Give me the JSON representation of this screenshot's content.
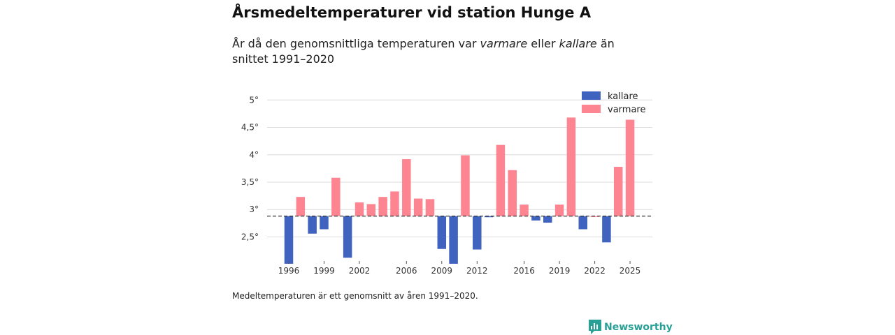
{
  "header": {
    "title": "Årsmedeltemperaturer vid station Hunge A",
    "subtitle_parts": [
      "År då den genomsnittliga temperaturen var ",
      "varmare",
      " eller ",
      "kallare",
      " än snittet 1991–2020"
    ]
  },
  "footnote": "Medeltemperaturen är ett genomsnitt av åren 1991–2020.",
  "brand": {
    "name": "Newsworthy",
    "icon": "newsworthy-logo-icon"
  },
  "chart_data": {
    "type": "bar",
    "title": "Årsmedeltemperaturer vid station Hunge A",
    "baseline": 2.88,
    "ylim": [
      2.0,
      5.2
    ],
    "yticks": [
      2.5,
      3,
      3.5,
      4,
      4.5,
      5
    ],
    "ytick_labels": [
      "2,5°",
      "3°",
      "3,5°",
      "4°",
      "4,5°",
      "5°"
    ],
    "xtick_years": [
      1996,
      1999,
      2002,
      2006,
      2009,
      2012,
      2016,
      2019,
      2022,
      2025
    ],
    "legend": [
      {
        "key": "kallare",
        "label": "kallare",
        "color": "#3f63bf"
      },
      {
        "key": "varmare",
        "label": "varmare",
        "color": "#fd8591"
      }
    ],
    "colors": {
      "kallare": "#3f63bf",
      "varmare": "#fd8591"
    },
    "years": [
      1996,
      1997,
      1998,
      1999,
      2000,
      2001,
      2002,
      2003,
      2004,
      2005,
      2006,
      2007,
      2008,
      2009,
      2010,
      2011,
      2012,
      2013,
      2014,
      2015,
      2016,
      2017,
      2018,
      2019,
      2020,
      2021,
      2022,
      2023,
      2024,
      2025
    ],
    "values": [
      2.01,
      3.23,
      2.56,
      2.64,
      3.58,
      2.12,
      3.13,
      3.1,
      3.23,
      3.33,
      3.92,
      3.2,
      3.19,
      2.28,
      2.01,
      3.99,
      2.27,
      2.86,
      4.18,
      3.72,
      3.09,
      2.8,
      2.76,
      3.09,
      4.68,
      2.64,
      2.88,
      2.4,
      3.78,
      4.64
    ]
  }
}
